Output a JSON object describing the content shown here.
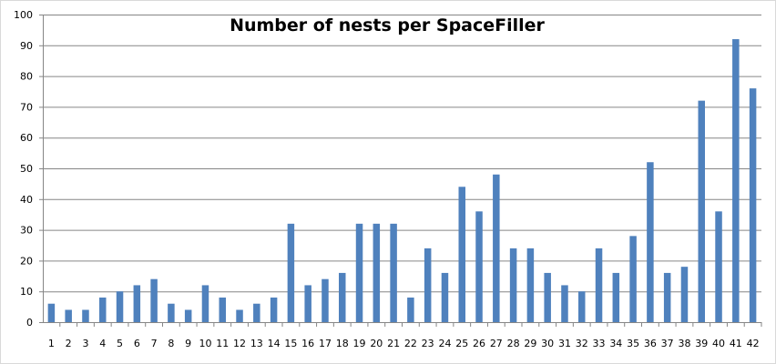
{
  "chart_data": {
    "type": "bar",
    "title": "Number of nests per SpaceFiller",
    "xlabel": "",
    "ylabel": "",
    "ylim": [
      0,
      100
    ],
    "yticks": [
      0,
      10,
      20,
      30,
      40,
      50,
      60,
      70,
      80,
      90,
      100
    ],
    "grid": true,
    "categories": [
      "1",
      "2",
      "3",
      "4",
      "5",
      "6",
      "7",
      "8",
      "9",
      "10",
      "11",
      "12",
      "13",
      "14",
      "15",
      "16",
      "17",
      "18",
      "19",
      "20",
      "21",
      "22",
      "23",
      "24",
      "25",
      "26",
      "27",
      "28",
      "29",
      "30",
      "31",
      "32",
      "33",
      "34",
      "35",
      "36",
      "37",
      "38",
      "39",
      "40",
      "41",
      "42"
    ],
    "values": [
      6,
      4,
      4,
      8,
      10,
      12,
      14,
      6,
      4,
      12,
      8,
      4,
      6,
      8,
      32,
      12,
      14,
      16,
      32,
      32,
      32,
      8,
      24,
      16,
      44,
      36,
      48,
      24,
      24,
      16,
      12,
      10,
      24,
      16,
      28,
      52,
      16,
      18,
      72,
      36,
      92,
      76
    ],
    "colors": {
      "bar": "#4F81BD",
      "grid": "#868686",
      "axis": "#868686",
      "frame": "#D9D9D9"
    }
  }
}
